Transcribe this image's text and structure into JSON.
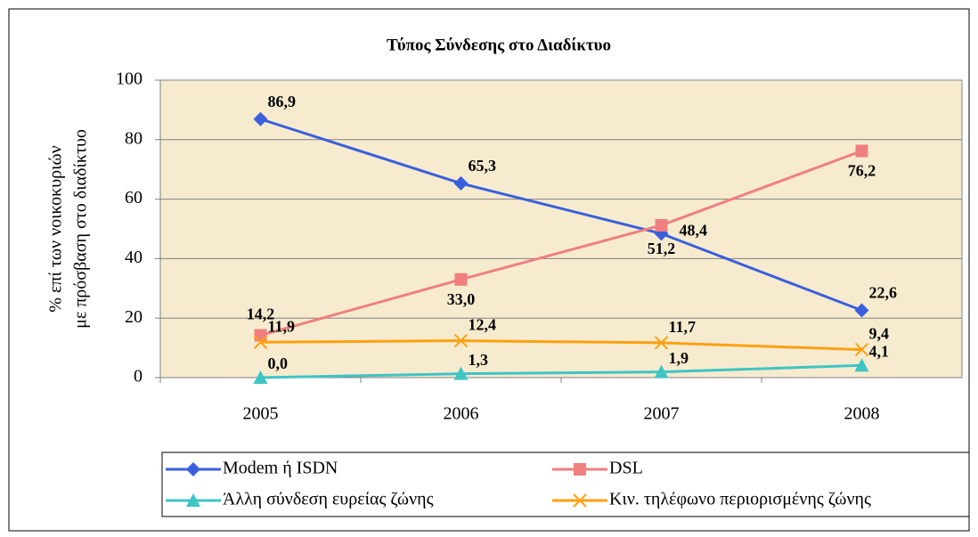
{
  "chart_data": {
    "type": "line",
    "title": "Τύπος Σύνδεσης στο Διαδίκτυο",
    "ylabel": [
      "% επί των νοικοκυριών",
      "με πρόσβαση στο διαδίκτυο"
    ],
    "categories": [
      "2005",
      "2006",
      "2007",
      "2008"
    ],
    "series": [
      {
        "name": "Modem ή ISDN",
        "color": "#3a5fdc",
        "marker": "diamond",
        "values": [
          86.9,
          65.3,
          48.4,
          22.6
        ],
        "value_labels": [
          "86,9",
          "65,3",
          "48,4",
          "22,6"
        ]
      },
      {
        "name": "DSL",
        "color": "#f07f7f",
        "marker": "square",
        "values": [
          14.2,
          33.0,
          51.2,
          76.2
        ],
        "value_labels": [
          "14,2",
          "33,0",
          "51,2",
          "76,2"
        ]
      },
      {
        "name": "Άλλη σύνδεση ευρείας ζώνης",
        "color": "#3fc4c4",
        "marker": "triangle",
        "values": [
          0.0,
          1.3,
          1.9,
          4.1
        ],
        "value_labels": [
          "0,0",
          "1,3",
          "1,9",
          "4,1"
        ]
      },
      {
        "name": "Κιν. τηλέφωνο περιορισμένης ζώνης",
        "color": "#ffa010",
        "marker": "x",
        "values": [
          11.9,
          12.4,
          11.7,
          9.4
        ],
        "value_labels": [
          "11,9",
          "12,4",
          "11,7",
          "9,4"
        ]
      }
    ],
    "ylim": [
      0,
      100
    ],
    "yticks": [
      0,
      20,
      40,
      60,
      80,
      100
    ],
    "grid": true
  }
}
